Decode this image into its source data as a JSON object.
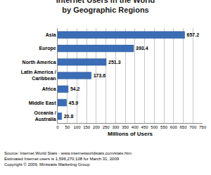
{
  "chart_data": {
    "type": "bar",
    "orientation": "horizontal",
    "title": "Internet Users in the World",
    "subtitle": "by Geographic Regions",
    "categories": [
      "Asia",
      "Europe",
      "North America",
      "Latin America / Caribbean",
      "Africa",
      "Middle East",
      "Oceania / Australia"
    ],
    "values": [
      657.2,
      393.4,
      251.3,
      173.6,
      54.2,
      45.9,
      20.8
    ],
    "color": "#3a6db5",
    "xlabel": "Millions of Users",
    "xlim": [
      0,
      750
    ],
    "xticks": [
      0,
      50,
      100,
      150,
      200,
      250,
      300,
      350,
      400,
      450,
      500,
      550,
      600,
      650,
      700,
      750
    ],
    "grid": true,
    "data_labels": true,
    "annotations": [
      "Source: Internet World Stats - www.internetworldstats.com/stats.htm",
      "Estimated Internet users is 1,596,270,108 for March 31, 2009",
      "Copyright © 2009, Miniwatts Marketing Group"
    ]
  }
}
